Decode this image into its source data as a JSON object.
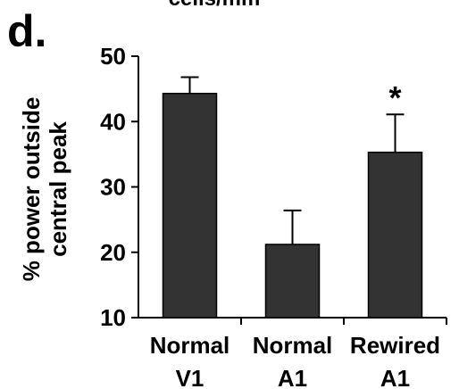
{
  "panel_label": "d.",
  "top_text": "cells/mm",
  "chart_data": {
    "type": "bar",
    "categories": [
      "Normal\nV1",
      "Normal\nA1",
      "Rewired\nA1"
    ],
    "category_lines": [
      [
        "Normal",
        "V1"
      ],
      [
        "Normal",
        "A1"
      ],
      [
        "Rewired",
        "A1"
      ]
    ],
    "values": [
      44.3,
      21.2,
      35.3
    ],
    "errors": [
      2.5,
      5.2,
      5.8
    ],
    "ylabel_lines": [
      "% power outside",
      "central peak"
    ],
    "ylim": [
      10,
      50
    ],
    "yticks": [
      10,
      20,
      30,
      40,
      50
    ],
    "annotations": [
      "",
      "",
      "*"
    ],
    "bar_color": "#333333",
    "grid": false
  }
}
